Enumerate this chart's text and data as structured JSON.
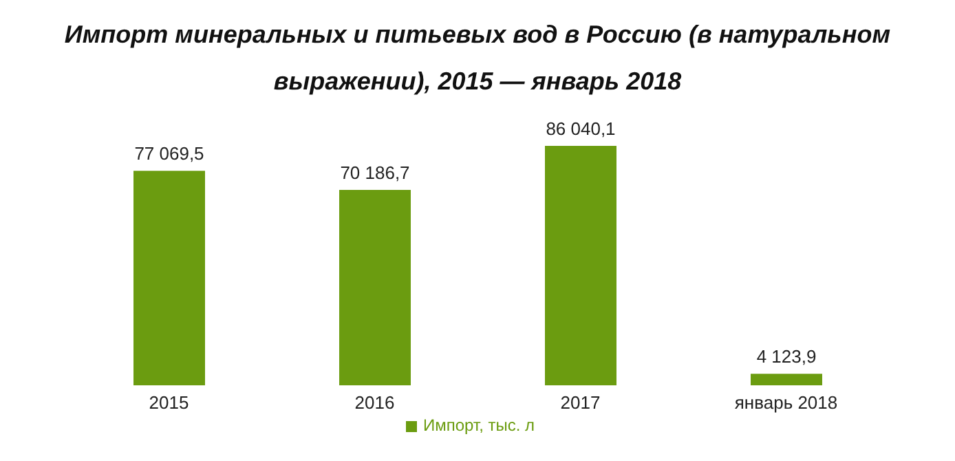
{
  "chart_data": {
    "type": "bar",
    "title": "Импорт минеральных и питьевых вод в Россию (в натуральном выражении), 2015 — январь 2018",
    "categories": [
      "2015",
      "2016",
      "2017",
      "январь 2018"
    ],
    "series": [
      {
        "name": "Импорт, тыс. л",
        "color": "#6b9c10",
        "values": [
          77069.5,
          70186.7,
          86040.1,
          4123.9
        ],
        "value_labels": [
          "77 069,5",
          "70 186,7",
          "86 040,1",
          "4 123,9"
        ]
      }
    ],
    "legend": "bottom",
    "grid": false
  }
}
